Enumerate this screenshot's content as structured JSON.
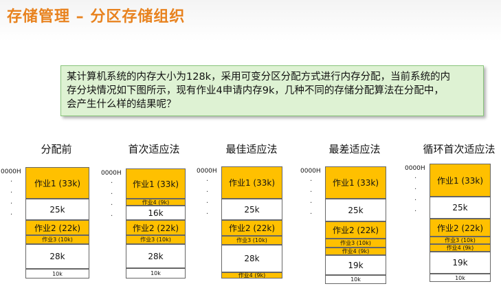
{
  "header": {
    "title": "存储管理 – 分区存储组织"
  },
  "question": {
    "lines": [
      "某计算机系统的内存大小为128k，采用可变分区分配方式进行内存分配，当前系统的内",
      "存分块情况如下图所示，现有作业4申请内存9k，几种不同的存储分配算法在分配中，",
      "会产生什么样的结果呢？"
    ]
  },
  "diagrams": [
    {
      "label": "分配前",
      "address": "0000H",
      "blocks": [
        {
          "text": "作业1 (33k)",
          "kind": "job"
        },
        {
          "text": "25k",
          "kind": "free"
        },
        {
          "text": "作业2 (22k)",
          "kind": "job"
        },
        {
          "text": "作业3 (10k)",
          "kind": "job"
        },
        {
          "text": "28k",
          "kind": "free"
        },
        {
          "text": "10k",
          "kind": "free"
        }
      ]
    },
    {
      "label": "首次适应法",
      "address": "0000H",
      "blocks": [
        {
          "text": "作业1 (33k)",
          "kind": "job"
        },
        {
          "text": "作业4 (9k)",
          "kind": "job"
        },
        {
          "text": "16k",
          "kind": "free"
        },
        {
          "text": "作业2 (22k)",
          "kind": "job"
        },
        {
          "text": "作业3 (10k)",
          "kind": "job"
        },
        {
          "text": "28k",
          "kind": "free"
        },
        {
          "text": "10k",
          "kind": "free"
        }
      ]
    },
    {
      "label": "最佳适应法",
      "address": "0000H",
      "blocks": [
        {
          "text": "作业1 (33k)",
          "kind": "job"
        },
        {
          "text": "25k",
          "kind": "free"
        },
        {
          "text": "作业2 (22k)",
          "kind": "job"
        },
        {
          "text": "作业3 (10k)",
          "kind": "job"
        },
        {
          "text": "28k",
          "kind": "free"
        },
        {
          "text": "作业4 (9k)",
          "kind": "job"
        }
      ]
    },
    {
      "label": "最差适应法",
      "address": "0000H",
      "blocks": [
        {
          "text": "作业1 (33k)",
          "kind": "job"
        },
        {
          "text": "25k",
          "kind": "free"
        },
        {
          "text": "作业2 (22k)",
          "kind": "job"
        },
        {
          "text": "作业3 (10k)",
          "kind": "job"
        },
        {
          "text": "作业4 (9k)",
          "kind": "job"
        },
        {
          "text": "19k",
          "kind": "free"
        },
        {
          "text": "10k",
          "kind": "free"
        }
      ]
    },
    {
      "label": "循环首次适应法",
      "address": "0000H",
      "blocks": [
        {
          "text": "作业1 (33k)",
          "kind": "job"
        },
        {
          "text": "25k",
          "kind": "free"
        },
        {
          "text": "作业2 (22k)",
          "kind": "job"
        },
        {
          "text": "作业3 (10k)",
          "kind": "job"
        },
        {
          "text": "作业4 (9k)",
          "kind": "job"
        },
        {
          "text": "19k",
          "kind": "free"
        },
        {
          "text": "10k",
          "kind": "free"
        }
      ]
    }
  ]
}
